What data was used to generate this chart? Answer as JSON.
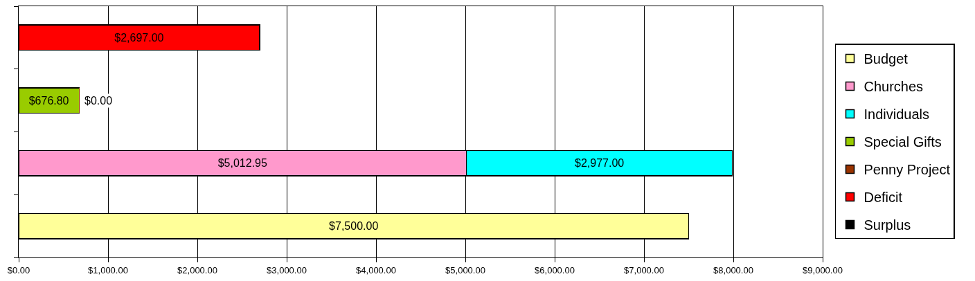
{
  "chart_data": {
    "type": "bar",
    "orientation": "horizontal",
    "stacked": true,
    "categories": [
      null,
      null,
      null,
      null
    ],
    "series": [
      {
        "name": "Budget",
        "color": "#ffff99",
        "values": [
          null,
          null,
          null,
          7500
        ],
        "value_labels": [
          null,
          null,
          null,
          "$7,500.00"
        ]
      },
      {
        "name": "Churches",
        "color": "#ff99cc",
        "values": [
          null,
          null,
          5012.95,
          null
        ],
        "value_labels": [
          null,
          null,
          "$5,012.95",
          null
        ]
      },
      {
        "name": "Individuals",
        "color": "#00ffff",
        "values": [
          null,
          null,
          2977,
          null
        ],
        "value_labels": [
          null,
          null,
          "$2,977.00",
          null
        ]
      },
      {
        "name": "Special Gifts",
        "color": "#99cc00",
        "values": [
          null,
          676.8,
          null,
          null
        ],
        "value_labels": [
          null,
          "$676.80",
          null,
          null
        ]
      },
      {
        "name": "Penny Project",
        "color": "#993300",
        "values": [
          null,
          0,
          null,
          null
        ],
        "value_labels": [
          null,
          "$0.00",
          null,
          null
        ]
      },
      {
        "name": "Deficit",
        "color": "#ff0000",
        "values": [
          2697,
          null,
          null,
          null
        ],
        "value_labels": [
          "$2,697.00",
          null,
          null,
          null
        ]
      },
      {
        "name": "Surplus",
        "color": "#000000",
        "values": [
          null,
          null,
          null,
          null
        ]
      }
    ],
    "xlim": [
      0,
      9000
    ],
    "xticks": [
      {
        "value": 0,
        "label": "$0.00"
      },
      {
        "value": 1000,
        "label": "$1,000.00"
      },
      {
        "value": 2000,
        "label": "$2,000.00"
      },
      {
        "value": 3000,
        "label": "$3,000.00"
      },
      {
        "value": 4000,
        "label": "$4,000.00"
      },
      {
        "value": 5000,
        "label": "$5,000.00"
      },
      {
        "value": 6000,
        "label": "$6,000.00"
      },
      {
        "value": 7000,
        "label": "$7,000.00"
      },
      {
        "value": 8000,
        "label": "$8,000.00"
      },
      {
        "value": 9000,
        "label": "$9,000.00"
      }
    ],
    "grid": "x",
    "legend": "right",
    "tick_labels": "x"
  }
}
